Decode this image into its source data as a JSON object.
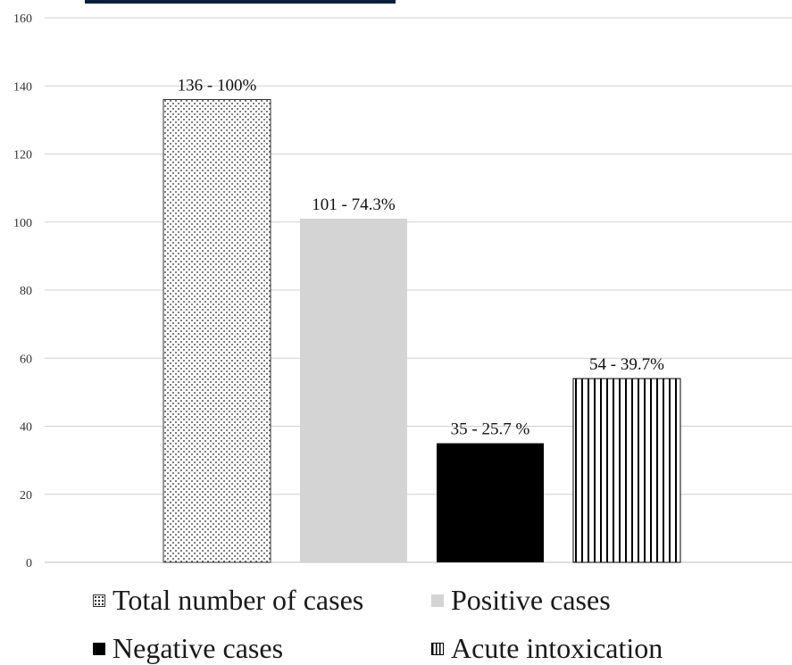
{
  "chart_data": {
    "type": "bar",
    "categories": [
      "Total number of cases",
      "Positive cases",
      "Negative cases",
      "Acute intoxication"
    ],
    "values": [
      136,
      101,
      35,
      54
    ],
    "data_labels": [
      "136 - 100%",
      "101 - 74.3%",
      "35 - 25.7 %",
      "54 - 39.7%"
    ],
    "ylim": [
      0,
      160
    ],
    "yticks": [
      "0",
      "20",
      "40",
      "60",
      "80",
      "100",
      "120",
      "140",
      "160"
    ],
    "grid": true,
    "legend_position": "bottom",
    "legend": [
      {
        "label": "Total number of cases",
        "pattern": "dots",
        "color": "#222222"
      },
      {
        "label": "Positive cases",
        "pattern": "solid",
        "color": "#d4d4d4"
      },
      {
        "label": "Negative cases",
        "pattern": "solid",
        "color": "#000000"
      },
      {
        "label": "Acute intoxication",
        "pattern": "vertical-stripes",
        "color": "#000000"
      }
    ]
  }
}
